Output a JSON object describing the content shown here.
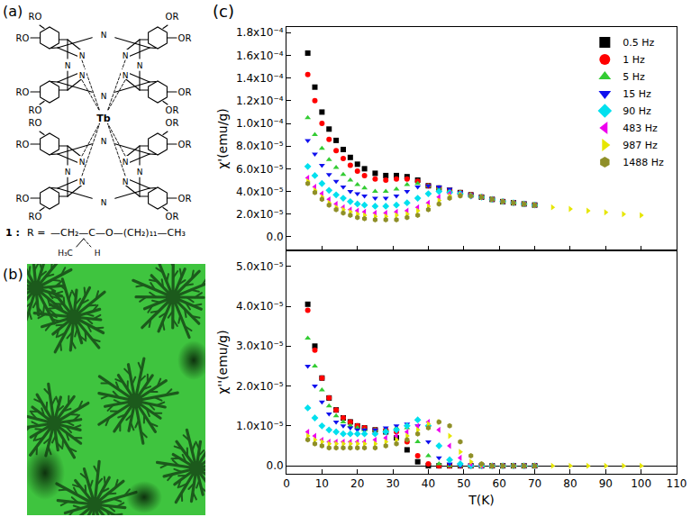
{
  "panel_labels": {
    "a": "(a)",
    "b": "(b)",
    "c": "(c)"
  },
  "structure": {
    "substituent_left": "RO",
    "substituent_right": "OR",
    "nitrogen": "N",
    "metal": "Tb",
    "compound_label": "1 :",
    "r_label": "R =",
    "chain": "—CH₂—C—O—(CH₂)₁₁—CH₃",
    "branch_methyl": "H₃C",
    "branch_h": "H"
  },
  "chart_data": [
    {
      "type": "scatter",
      "ylabel": "χ'(emu/g)",
      "legend": "top right",
      "grid": false,
      "tick_labels": "y",
      "x": [
        6,
        8,
        10,
        12,
        14,
        16,
        18,
        20,
        22,
        25,
        28,
        31,
        34,
        37,
        40,
        43,
        46,
        49,
        52,
        55,
        58,
        61,
        64,
        67,
        70,
        75,
        80,
        85,
        90,
        95,
        100
      ],
      "xlim": [
        0,
        110
      ],
      "xticks": [
        0,
        10,
        20,
        30,
        40,
        50,
        60,
        70,
        80,
        90,
        100,
        110
      ],
      "ylim": [
        -1.2e-05,
        0.000185
      ],
      "yticks": [
        {
          "value": 0,
          "label": "0.0"
        },
        {
          "value": 2e-05,
          "label": "2.0x10⁻⁵"
        },
        {
          "value": 4e-05,
          "label": "4.0x10⁻⁵"
        },
        {
          "value": 6e-05,
          "label": "6.0x10⁻⁵"
        },
        {
          "value": 8e-05,
          "label": "8.0x10⁻⁵"
        },
        {
          "value": 0.0001,
          "label": "1.0x10⁻⁴"
        },
        {
          "value": 0.00012,
          "label": "1.2x10⁻⁴"
        },
        {
          "value": 0.00014,
          "label": "1.4x10⁻⁴"
        },
        {
          "value": 0.00016,
          "label": "1.6x10⁻⁴"
        },
        {
          "value": 0.00018,
          "label": "1.8x10⁻⁴"
        }
      ],
      "series": [
        {
          "name": "0.5 Hz",
          "color": "#000000",
          "marker": "square",
          "values": [
            0.000162,
            0.000132,
            0.00011,
            9.5e-05,
            8.5e-05,
            7.7e-05,
            7e-05,
            6.4e-05,
            6e-05,
            5.6e-05,
            5.4e-05,
            5.4e-05,
            5.3e-05,
            5e-05,
            4.5e-05,
            4.3e-05,
            4.1e-05,
            3.9e-05,
            3.7e-05,
            3.5e-05,
            3.3e-05,
            3.1e-05,
            3e-05,
            2.9e-05,
            2.8e-05,
            null,
            null,
            null,
            null,
            null,
            null
          ]
        },
        {
          "name": "1 Hz",
          "color": "#ff0000",
          "marker": "circle",
          "values": [
            0.000143,
            0.00012,
            0.0001,
            8.6e-05,
            7.6e-05,
            6.9e-05,
            6.3e-05,
            5.8e-05,
            5.4e-05,
            5.1e-05,
            5e-05,
            5.1e-05,
            5.1e-05,
            4.9e-05,
            4.5e-05,
            4.3e-05,
            4.1e-05,
            3.9e-05,
            3.7e-05,
            3.5e-05,
            3.3e-05,
            3.1e-05,
            3e-05,
            2.9e-05,
            2.8e-05,
            null,
            null,
            null,
            null,
            null,
            null
          ]
        },
        {
          "name": "5 Hz",
          "color": "#33cc33",
          "marker": "triangle-up",
          "values": [
            0.000105,
            9e-05,
            7.8e-05,
            6.8e-05,
            6.1e-05,
            5.5e-05,
            5e-05,
            4.6e-05,
            4.3e-05,
            4e-05,
            4e-05,
            4.2e-05,
            4.6e-05,
            4.7e-05,
            4.5e-05,
            4.3e-05,
            4.1e-05,
            3.9e-05,
            3.7e-05,
            3.5e-05,
            3.3e-05,
            3.1e-05,
            3e-05,
            2.9e-05,
            2.8e-05,
            null,
            null,
            null,
            null,
            null,
            null
          ]
        },
        {
          "name": "15 Hz",
          "color": "#1010ee",
          "marker": "triangle-down",
          "values": [
            8.5e-05,
            7.3e-05,
            6.3e-05,
            5.5e-05,
            4.9e-05,
            4.4e-05,
            4e-05,
            3.8e-05,
            3.6e-05,
            3.4e-05,
            3.4e-05,
            3.6e-05,
            4e-05,
            4.4e-05,
            4.5e-05,
            4.4e-05,
            4.2e-05,
            3.9e-05,
            3.7e-05,
            3.5e-05,
            3.3e-05,
            3.1e-05,
            3e-05,
            2.9e-05,
            2.8e-05,
            null,
            null,
            null,
            null,
            null,
            null
          ]
        },
        {
          "name": "90 Hz",
          "color": "#00e0ee",
          "marker": "diamond",
          "values": [
            6.2e-05,
            5.4e-05,
            4.7e-05,
            4.1e-05,
            3.7e-05,
            3.4e-05,
            3.1e-05,
            2.9e-05,
            2.8e-05,
            2.7e-05,
            2.7e-05,
            2.8e-05,
            3e-05,
            3.4e-05,
            3.8e-05,
            4e-05,
            3.9e-05,
            3.8e-05,
            3.6e-05,
            3.5e-05,
            3.3e-05,
            3.1e-05,
            3e-05,
            2.9e-05,
            2.8e-05,
            null,
            null,
            null,
            null,
            null,
            null
          ]
        },
        {
          "name": "483 Hz",
          "color": "#ee00ee",
          "marker": "triangle-left",
          "values": [
            5.2e-05,
            4.4e-05,
            3.8e-05,
            3.3e-05,
            2.9e-05,
            2.6e-05,
            2.4e-05,
            2.3e-05,
            2.2e-05,
            2.1e-05,
            2.1e-05,
            2.2e-05,
            2.3e-05,
            2.6e-05,
            3e-05,
            3.5e-05,
            3.8e-05,
            3.7e-05,
            3.6e-05,
            3.5e-05,
            3.3e-05,
            3.1e-05,
            3e-05,
            2.9e-05,
            2.8e-05,
            null,
            null,
            null,
            null,
            null,
            null
          ]
        },
        {
          "name": "987 Hz",
          "color": "#e6e600",
          "marker": "triangle-right",
          "values": [
            4.9e-05,
            4.1e-05,
            3.5e-05,
            3e-05,
            2.6e-05,
            2.4e-05,
            2.2e-05,
            2e-05,
            1.9e-05,
            1.8e-05,
            1.8e-05,
            1.9e-05,
            2e-05,
            2.3e-05,
            2.7e-05,
            3.2e-05,
            3.6e-05,
            3.7e-05,
            3.6e-05,
            3.5e-05,
            3.3e-05,
            3.1e-05,
            3e-05,
            2.9e-05,
            2.8e-05,
            2.6e-05,
            2.45e-05,
            2.3e-05,
            2.15e-05,
            2e-05,
            1.9e-05
          ]
        },
        {
          "name": "1488 Hz",
          "color": "#8f8f28",
          "marker": "hexagon",
          "values": [
            4.7e-05,
            3.9e-05,
            3.3e-05,
            2.8e-05,
            2.4e-05,
            2.1e-05,
            1.9e-05,
            1.7e-05,
            1.6e-05,
            1.5e-05,
            1.5e-05,
            1.5e-05,
            1.7e-05,
            1.9e-05,
            2.4e-05,
            2.9e-05,
            3.4e-05,
            3.6e-05,
            3.6e-05,
            3.5e-05,
            3.3e-05,
            3.1e-05,
            3e-05,
            2.9e-05,
            2.8e-05,
            null,
            null,
            null,
            null,
            null,
            null
          ]
        }
      ]
    },
    {
      "type": "scatter",
      "xlabel": "T(K)",
      "ylabel": "χ''(emu/g)",
      "grid": false,
      "x": [
        6,
        8,
        10,
        12,
        14,
        16,
        18,
        20,
        22,
        25,
        28,
        31,
        34,
        37,
        40,
        43,
        46,
        49,
        52,
        55,
        58,
        61,
        64,
        67,
        70,
        75,
        80,
        85,
        90,
        95,
        100
      ],
      "xlim": [
        0,
        110
      ],
      "xticks": [
        0,
        10,
        20,
        30,
        40,
        50,
        60,
        70,
        80,
        90,
        100,
        110
      ],
      "ylim": [
        -2e-06,
        5.4e-05
      ],
      "yticks": [
        {
          "value": 0,
          "label": "0.0"
        },
        {
          "value": 1e-05,
          "label": "1.0x10⁻⁵"
        },
        {
          "value": 2e-05,
          "label": "2.0x10⁻⁵"
        },
        {
          "value": 3e-05,
          "label": "3.0x10⁻⁵"
        },
        {
          "value": 4e-05,
          "label": "4.0x10⁻⁵"
        },
        {
          "value": 5e-05,
          "label": "5.0x10⁻⁵"
        }
      ],
      "series": [
        {
          "color": "#000000",
          "marker": "square",
          "values": [
            4.05e-05,
            3e-05,
            2.2e-05,
            1.7e-05,
            1.4e-05,
            1.2e-05,
            1.1e-05,
            1e-05,
            9.5e-06,
            9e-06,
            8.5e-06,
            7e-06,
            4e-06,
            1e-06,
            0,
            0,
            0,
            0,
            0,
            0,
            0,
            0,
            0,
            0,
            0,
            null,
            null,
            null,
            null,
            null,
            null
          ]
        },
        {
          "color": "#ff0000",
          "marker": "circle",
          "values": [
            3.9e-05,
            2.9e-05,
            2.2e-05,
            1.7e-05,
            1.4e-05,
            1.2e-05,
            1.1e-05,
            1e-05,
            9.5e-06,
            9e-06,
            9e-06,
            8.5e-06,
            6e-06,
            2.5e-06,
            5e-07,
            0,
            0,
            0,
            0,
            0,
            0,
            0,
            0,
            0,
            0,
            null,
            null,
            null,
            null,
            null,
            null
          ]
        },
        {
          "color": "#33cc33",
          "marker": "triangle-up",
          "values": [
            3.2e-05,
            2.5e-05,
            1.9e-05,
            1.5e-05,
            1.25e-05,
            1.1e-05,
            1e-05,
            9.5e-06,
            9e-06,
            9e-06,
            9e-06,
            9.5e-06,
            9.5e-06,
            6e-06,
            2.5e-06,
            5e-07,
            0,
            0,
            0,
            0,
            0,
            0,
            0,
            0,
            0,
            null,
            null,
            null,
            null,
            null,
            null
          ]
        },
        {
          "color": "#1010ee",
          "marker": "triangle-down",
          "values": [
            2.5e-05,
            2e-05,
            1.6e-05,
            1.3e-05,
            1.1e-05,
            1e-05,
            9.5e-06,
            9e-06,
            9e-06,
            9e-06,
            9.5e-06,
            1e-05,
            1.05e-05,
            1e-05,
            6e-06,
            2e-06,
            5e-07,
            0,
            0,
            0,
            0,
            0,
            0,
            0,
            0,
            null,
            null,
            null,
            null,
            null,
            null
          ]
        },
        {
          "color": "#00e0ee",
          "marker": "diamond",
          "values": [
            1.45e-05,
            1.2e-05,
            1e-05,
            9e-06,
            8.5e-06,
            8e-06,
            8e-06,
            8e-06,
            8e-06,
            8e-06,
            8.5e-06,
            9e-06,
            1e-05,
            1.15e-05,
            1e-05,
            5e-06,
            1.5e-06,
            5e-07,
            0,
            0,
            0,
            0,
            0,
            0,
            0,
            null,
            null,
            null,
            null,
            null,
            null
          ]
        },
        {
          "color": "#ee00ee",
          "marker": "triangle-left",
          "values": [
            8.5e-06,
            7.5e-06,
            6.5e-06,
            6e-06,
            6e-06,
            6e-06,
            6e-06,
            6e-06,
            6e-06,
            6.5e-06,
            7e-06,
            7.5e-06,
            8.5e-06,
            1e-05,
            1.1e-05,
            9e-06,
            5e-06,
            2e-06,
            5e-07,
            0,
            0,
            0,
            0,
            0,
            0,
            null,
            null,
            null,
            null,
            null,
            null
          ]
        },
        {
          "color": "#e6e600",
          "marker": "triangle-right",
          "values": [
            7.5e-06,
            6.5e-06,
            6e-06,
            5.5e-06,
            5.5e-06,
            5.5e-06,
            5.5e-06,
            5.5e-06,
            5.5e-06,
            5.5e-06,
            6e-06,
            6.5e-06,
            7.5e-06,
            9e-06,
            1.05e-05,
            1.1e-05,
            7.5e-06,
            3.5e-06,
            1e-06,
            2e-07,
            0,
            0,
            0,
            0,
            0,
            0,
            0,
            0,
            0,
            0,
            0
          ]
        },
        {
          "color": "#8f8f28",
          "marker": "hexagon",
          "values": [
            6.5e-06,
            5.5e-06,
            5e-06,
            4.5e-06,
            4.5e-06,
            4.5e-06,
            4.5e-06,
            4.5e-06,
            4.5e-06,
            4.5e-06,
            5e-06,
            5.5e-06,
            6.5e-06,
            8e-06,
            9.5e-06,
            1.1e-05,
            1e-05,
            6e-06,
            2.5e-06,
            5e-07,
            0,
            0,
            0,
            0,
            0,
            null,
            null,
            null,
            null,
            null,
            null
          ]
        }
      ]
    }
  ]
}
